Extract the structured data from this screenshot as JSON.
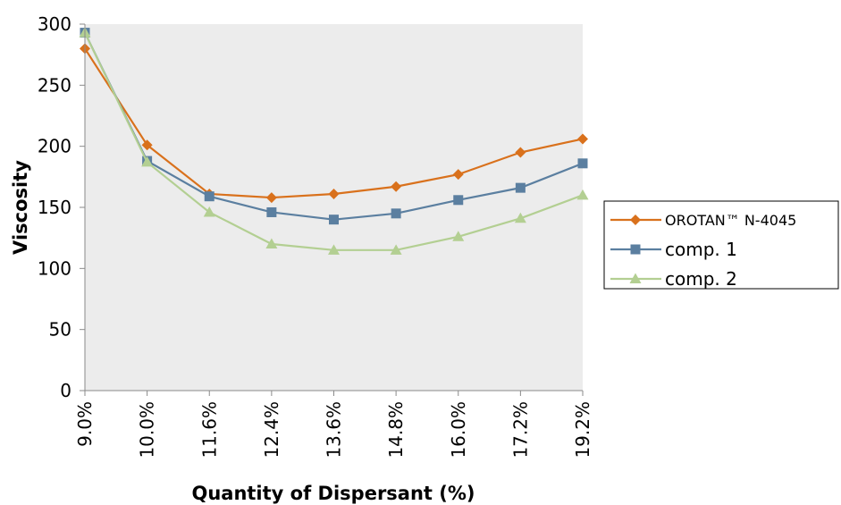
{
  "chart_data": {
    "type": "line",
    "title": "",
    "xlabel": "Quantity of Dispersant (%)",
    "ylabel": "Viscosity",
    "categories": [
      "9.0%",
      "10.0%",
      "11.6%",
      "12.4%",
      "13.6%",
      "14.8%",
      "16.0%",
      "17.2%",
      "19.2%"
    ],
    "ylim": [
      0,
      300
    ],
    "yticks": [
      0,
      50,
      100,
      150,
      200,
      250,
      300
    ],
    "grid": false,
    "plot_background": "#ececec",
    "legend_position": "right",
    "series": [
      {
        "name": "OROTAN™ N-4045",
        "color": "#d9711c",
        "marker": "diamond",
        "values": [
          280,
          201,
          161,
          158,
          161,
          167,
          177,
          195,
          206
        ]
      },
      {
        "name": "comp. 1",
        "color": "#5b7fa0",
        "marker": "square",
        "values": [
          293,
          188,
          159,
          146,
          140,
          145,
          156,
          166,
          186
        ]
      },
      {
        "name": "comp. 2",
        "color": "#b3cf92",
        "marker": "triangle",
        "values": [
          293,
          187,
          146,
          120,
          115,
          115,
          126,
          141,
          160
        ]
      }
    ]
  }
}
